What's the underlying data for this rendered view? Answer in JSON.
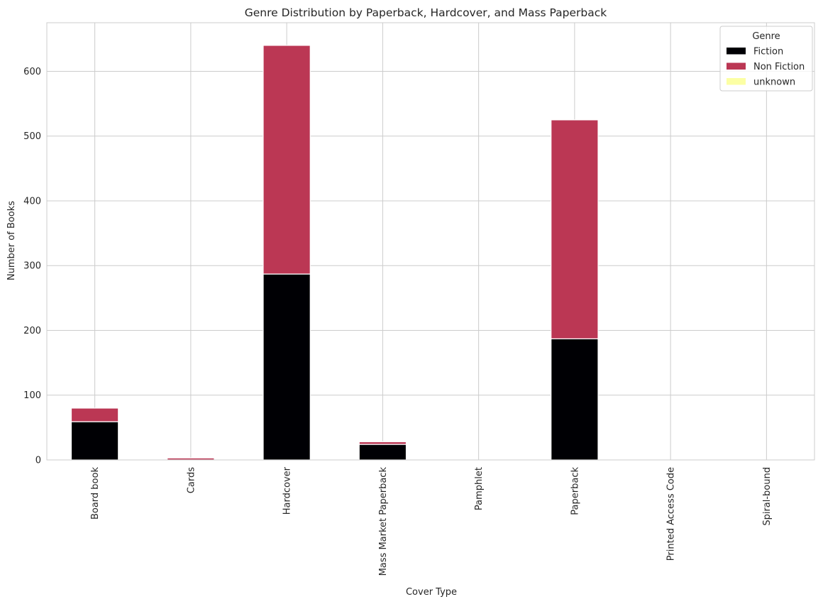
{
  "chart_data": {
    "type": "bar",
    "stacked": true,
    "title": "Genre Distribution by Paperback, Hardcover, and Mass Paperback",
    "xlabel": "Cover Type",
    "ylabel": "Number of Books",
    "ylim": [
      0,
      675
    ],
    "yticks": [
      0,
      100,
      200,
      300,
      400,
      500,
      600
    ],
    "grid": true,
    "legend": {
      "title": "Genre",
      "placement": "top-right"
    },
    "categories": [
      "Board book",
      "Cards",
      "Hardcover",
      "Mass Market Paperback",
      "Pamphlet",
      "Paperback",
      "Printed Access Code",
      "Spiral-bound"
    ],
    "series": [
      {
        "name": "Fiction",
        "color": "#000004",
        "values": [
          59,
          0,
          287,
          24,
          0,
          187,
          0,
          0
        ]
      },
      {
        "name": "Non Fiction",
        "color": "#bb3754",
        "values": [
          21,
          3,
          353,
          4,
          0,
          338,
          0,
          0
        ]
      },
      {
        "name": "unknown",
        "color": "#fcffa4",
        "values": [
          0,
          0,
          0,
          0,
          0,
          0,
          0,
          0
        ]
      }
    ]
  }
}
